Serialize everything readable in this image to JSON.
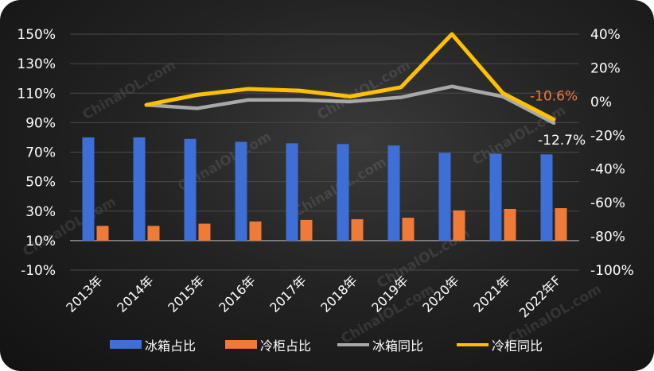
{
  "chart_data": {
    "type": "bar",
    "categories": [
      "2013年",
      "2014年",
      "2015年",
      "2016年",
      "2017年",
      "2018年",
      "2019年",
      "2020年",
      "2021年",
      "2022年F"
    ],
    "series": [
      {
        "name": "冰箱占比",
        "type": "bar",
        "axis": "left",
        "color": "#3d6fd6",
        "values": [
          80,
          80,
          79,
          77,
          76,
          75.5,
          74.5,
          69.5,
          69,
          68.5
        ]
      },
      {
        "name": "冷柜占比",
        "type": "bar",
        "axis": "left",
        "color": "#f07a38",
        "values": [
          20,
          20,
          21.5,
          23,
          24,
          24.5,
          25.5,
          30.5,
          31.5,
          32
        ]
      },
      {
        "name": "冰箱同比",
        "type": "line",
        "axis": "right",
        "color": "#a8a8a8",
        "values": [
          null,
          -2,
          -4,
          1,
          1,
          0,
          2.5,
          9,
          3,
          -12.7
        ]
      },
      {
        "name": "冷柜同比",
        "type": "line",
        "axis": "right",
        "color": "#ffc000",
        "values": [
          null,
          -2,
          4,
          7.5,
          6.5,
          3,
          8.5,
          40,
          5,
          -10.6
        ]
      }
    ],
    "y_left": {
      "min": -10,
      "max": 150,
      "ticks": [
        "-10%",
        "10%",
        "30%",
        "50%",
        "70%",
        "90%",
        "110%",
        "130%",
        "150%"
      ]
    },
    "y_right": {
      "min": -100,
      "max": 40,
      "ticks": [
        "-100%",
        "-80%",
        "-60%",
        "-40%",
        "-20%",
        "0%",
        "20%",
        "40%"
      ]
    },
    "annotations": [
      {
        "text": "-10.6%",
        "color": "#f07a38",
        "series": "冷柜同比"
      },
      {
        "text": "-12.7%",
        "color": "#ffffff",
        "series": "冰箱同比"
      }
    ],
    "legend": "bottom",
    "grid": true,
    "watermark": "ChinaIOL.com"
  }
}
